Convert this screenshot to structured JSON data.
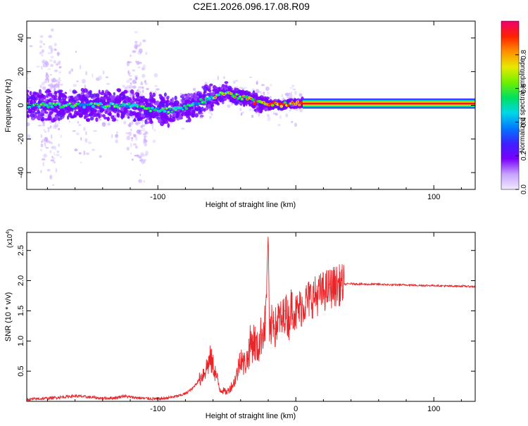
{
  "title": "C2E1.2026.096.17.08.R09",
  "chart_data": [
    {
      "type": "heatmap",
      "xlabel": "Height of straight line (km)",
      "ylabel": "Frequency (Hz)",
      "xlim": [
        -195,
        130
      ],
      "ylim": [
        -50,
        50
      ],
      "xticks": [
        -100,
        0,
        100
      ],
      "xticklabels": [
        "-100",
        "",
        "100"
      ],
      "yticks": [
        -40,
        -20,
        0,
        20,
        40
      ],
      "yticklabels": [
        "-40",
        "-20",
        "0",
        "20",
        "40"
      ],
      "ridge_x": [
        -195,
        -180,
        -160,
        -140,
        -120,
        -100,
        -90,
        -80,
        -70,
        -60,
        -50,
        -45,
        -40,
        -35,
        -30,
        -25,
        -20,
        -15,
        -10,
        -5,
        0,
        5,
        10,
        50,
        100,
        130
      ],
      "ridge_freq": [
        0,
        0,
        0,
        0,
        0,
        -3,
        -3,
        -1,
        2,
        5,
        8,
        6,
        5,
        4,
        2,
        1,
        0,
        1,
        0,
        1,
        1,
        1,
        1,
        0.5,
        0.5,
        0.5
      ],
      "colorbar": {
        "label": "Normalized spectral amplitude",
        "ticks": [
          0.0,
          0.2,
          0.4,
          0.6,
          0.8
        ],
        "ticklabels": [
          "0.0",
          "0.2",
          "0.4",
          "0.6",
          "0.8"
        ],
        "range": [
          0,
          1
        ],
        "colors": [
          "#f2eaff",
          "#c6a2ff",
          "#7a00ff",
          "#3c20ff",
          "#0078ff",
          "#00d8e8",
          "#00e060",
          "#70f000",
          "#e8e800",
          "#ff9000",
          "#ff2000",
          "#f0006e"
        ]
      }
    },
    {
      "type": "line",
      "xlabel": "Height of straight line (km)",
      "ylabel": "SNR (10 * v/v)",
      "scale_label": "(x10",
      "scale_exp": "4",
      "scale_close": ")",
      "xlim": [
        -195,
        130
      ],
      "ylim": [
        0,
        2.8
      ],
      "xticks": [
        -100,
        0,
        100
      ],
      "xticklabels": [
        "-100",
        "0",
        "100"
      ],
      "yticks": [
        0.5,
        1.0,
        1.5,
        2.0,
        2.5
      ],
      "yticklabels": [
        "0.5",
        "1.0",
        "1.5",
        "2.0",
        "2.5"
      ],
      "series": [
        {
          "name": "SNR",
          "color": "#e8262a",
          "x": [
            -195,
            -180,
            -170,
            -160,
            -150,
            -140,
            -130,
            -125,
            -120,
            -110,
            -100,
            -95,
            -90,
            -85,
            -80,
            -75,
            -70,
            -65,
            -62,
            -60,
            -58,
            -55,
            -50,
            -45,
            -42,
            -40,
            -38,
            -35,
            -33,
            -30,
            -28,
            -25,
            -22,
            -20,
            -19,
            -18,
            -17,
            -16,
            -15,
            -12,
            -10,
            -8,
            -5,
            -3,
            0,
            5,
            10,
            15,
            20,
            25,
            30,
            35,
            40,
            50,
            60,
            70,
            80,
            90,
            100,
            110,
            120,
            130
          ],
          "y": [
            0.02,
            0.04,
            0.06,
            0.08,
            0.06,
            0.04,
            0.05,
            0.08,
            0.06,
            0.04,
            0.03,
            0.04,
            0.06,
            0.08,
            0.12,
            0.2,
            0.35,
            0.55,
            0.7,
            0.6,
            0.45,
            0.2,
            0.15,
            0.3,
            0.5,
            0.8,
            0.6,
            0.7,
            0.95,
            1.0,
            0.85,
            1.1,
            1.3,
            2.8,
            1.0,
            1.2,
            1.3,
            1.4,
            1.2,
            1.4,
            1.3,
            1.5,
            1.35,
            1.6,
            1.45,
            1.6,
            1.7,
            1.75,
            1.82,
            1.88,
            1.92,
            1.94,
            1.95,
            1.94,
            1.94,
            1.93,
            1.93,
            1.92,
            1.92,
            1.91,
            1.91,
            1.9
          ]
        }
      ]
    }
  ]
}
